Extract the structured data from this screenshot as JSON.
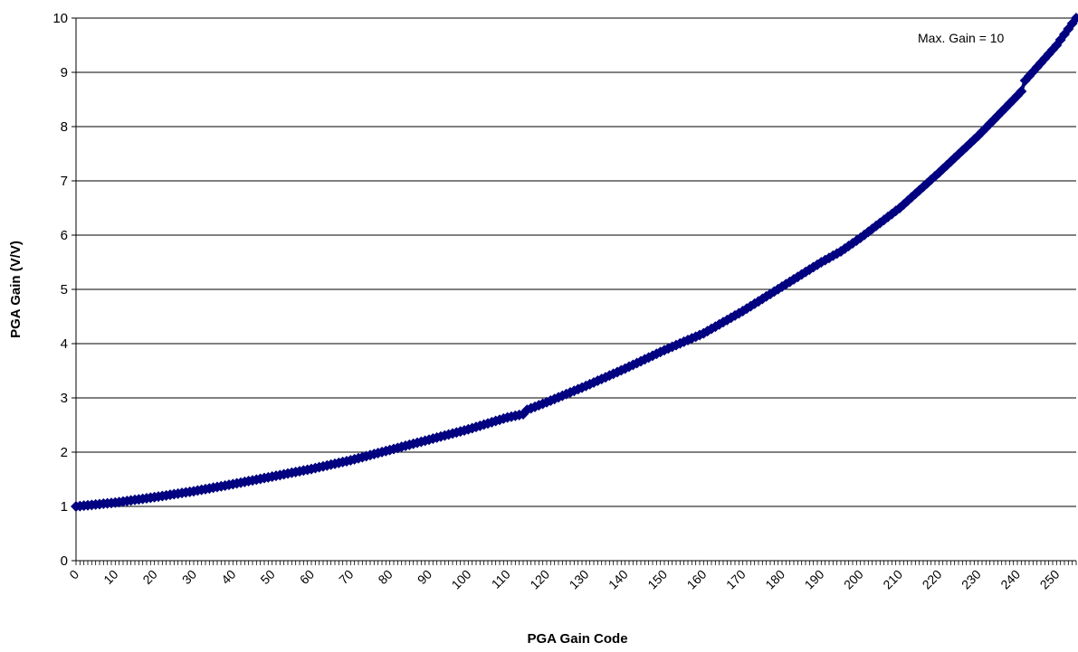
{
  "chart_data": {
    "type": "scatter",
    "xlabel": "PGA Gain Code",
    "ylabel": "PGA Gain (V/V)",
    "xlim": [
      0,
      255
    ],
    "ylim": [
      0,
      10
    ],
    "x_ticks": [
      "0",
      "10",
      "20",
      "30",
      "40",
      "50",
      "60",
      "70",
      "80",
      "90",
      "100",
      "110",
      "120",
      "130",
      "140",
      "150",
      "160",
      "170",
      "180",
      "190",
      "200",
      "210",
      "220",
      "230",
      "240",
      "250"
    ],
    "y_ticks": [
      "0",
      "1",
      "2",
      "3",
      "4",
      "5",
      "6",
      "7",
      "8",
      "9",
      "10"
    ],
    "grid": "horizontal",
    "annotation": "Max. Gain = 10",
    "marker": "diamond",
    "series_color": "#000080",
    "series": [
      {
        "x": [
          0,
          10,
          20,
          30,
          40,
          50,
          60,
          70,
          80,
          90,
          100,
          110,
          114,
          115,
          120,
          130,
          140,
          150,
          160,
          170,
          180,
          190,
          195,
          200,
          210,
          220,
          230,
          240,
          241,
          242,
          250,
          255
        ],
        "y": [
          1.0,
          1.07,
          1.17,
          1.28,
          1.41,
          1.55,
          1.69,
          1.85,
          2.04,
          2.23,
          2.42,
          2.64,
          2.7,
          2.78,
          2.92,
          3.22,
          3.54,
          3.88,
          4.19,
          4.6,
          5.05,
          5.5,
          5.7,
          5.95,
          6.5,
          7.15,
          7.83,
          8.57,
          8.65,
          8.85,
          9.5,
          10.0
        ]
      }
    ]
  }
}
